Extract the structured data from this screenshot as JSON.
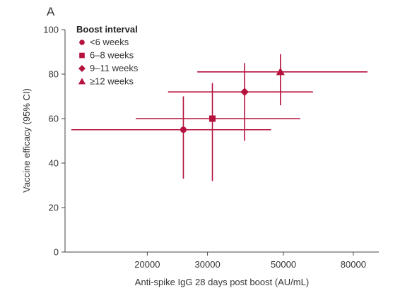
{
  "panel_label": "A",
  "chart_data": {
    "type": "scatter",
    "xlabel": "Anti-spike IgG 28 days post boost (AU/mL)",
    "ylabel": "Vaccine efficacy (95% CI)",
    "x_scale": "log",
    "xlim": [
      11500,
      95000
    ],
    "ylim": [
      0,
      100
    ],
    "x_ticks": [
      20000,
      30000,
      50000,
      80000
    ],
    "x_tick_labels": [
      "20000",
      "30000",
      "50000",
      "80000"
    ],
    "y_ticks": [
      0,
      20,
      40,
      60,
      80,
      100
    ],
    "y_tick_labels": [
      "0",
      "20",
      "40",
      "60",
      "80",
      "100"
    ],
    "grid": false,
    "legend": {
      "title": "Boost interval",
      "position": "top-left"
    },
    "color": "#b5123e",
    "series": [
      {
        "name": "<6 weeks",
        "marker": "circle",
        "x": 25500,
        "y": 55,
        "x_low": 12000,
        "x_high": 46000,
        "y_low": 33,
        "y_high": 70
      },
      {
        "name": "6–8 weeks",
        "marker": "square",
        "x": 31000,
        "y": 60,
        "x_low": 18500,
        "x_high": 56000,
        "y_low": 32,
        "y_high": 76
      },
      {
        "name": "9–11 weeks",
        "marker": "diamond",
        "x": 38500,
        "y": 72,
        "x_low": 23000,
        "x_high": 61000,
        "y_low": 50,
        "y_high": 85
      },
      {
        "name": "≥12 weeks",
        "marker": "triangle",
        "x": 49000,
        "y": 81,
        "x_low": 28000,
        "x_high": 88000,
        "y_low": 66,
        "y_high": 89
      }
    ]
  }
}
